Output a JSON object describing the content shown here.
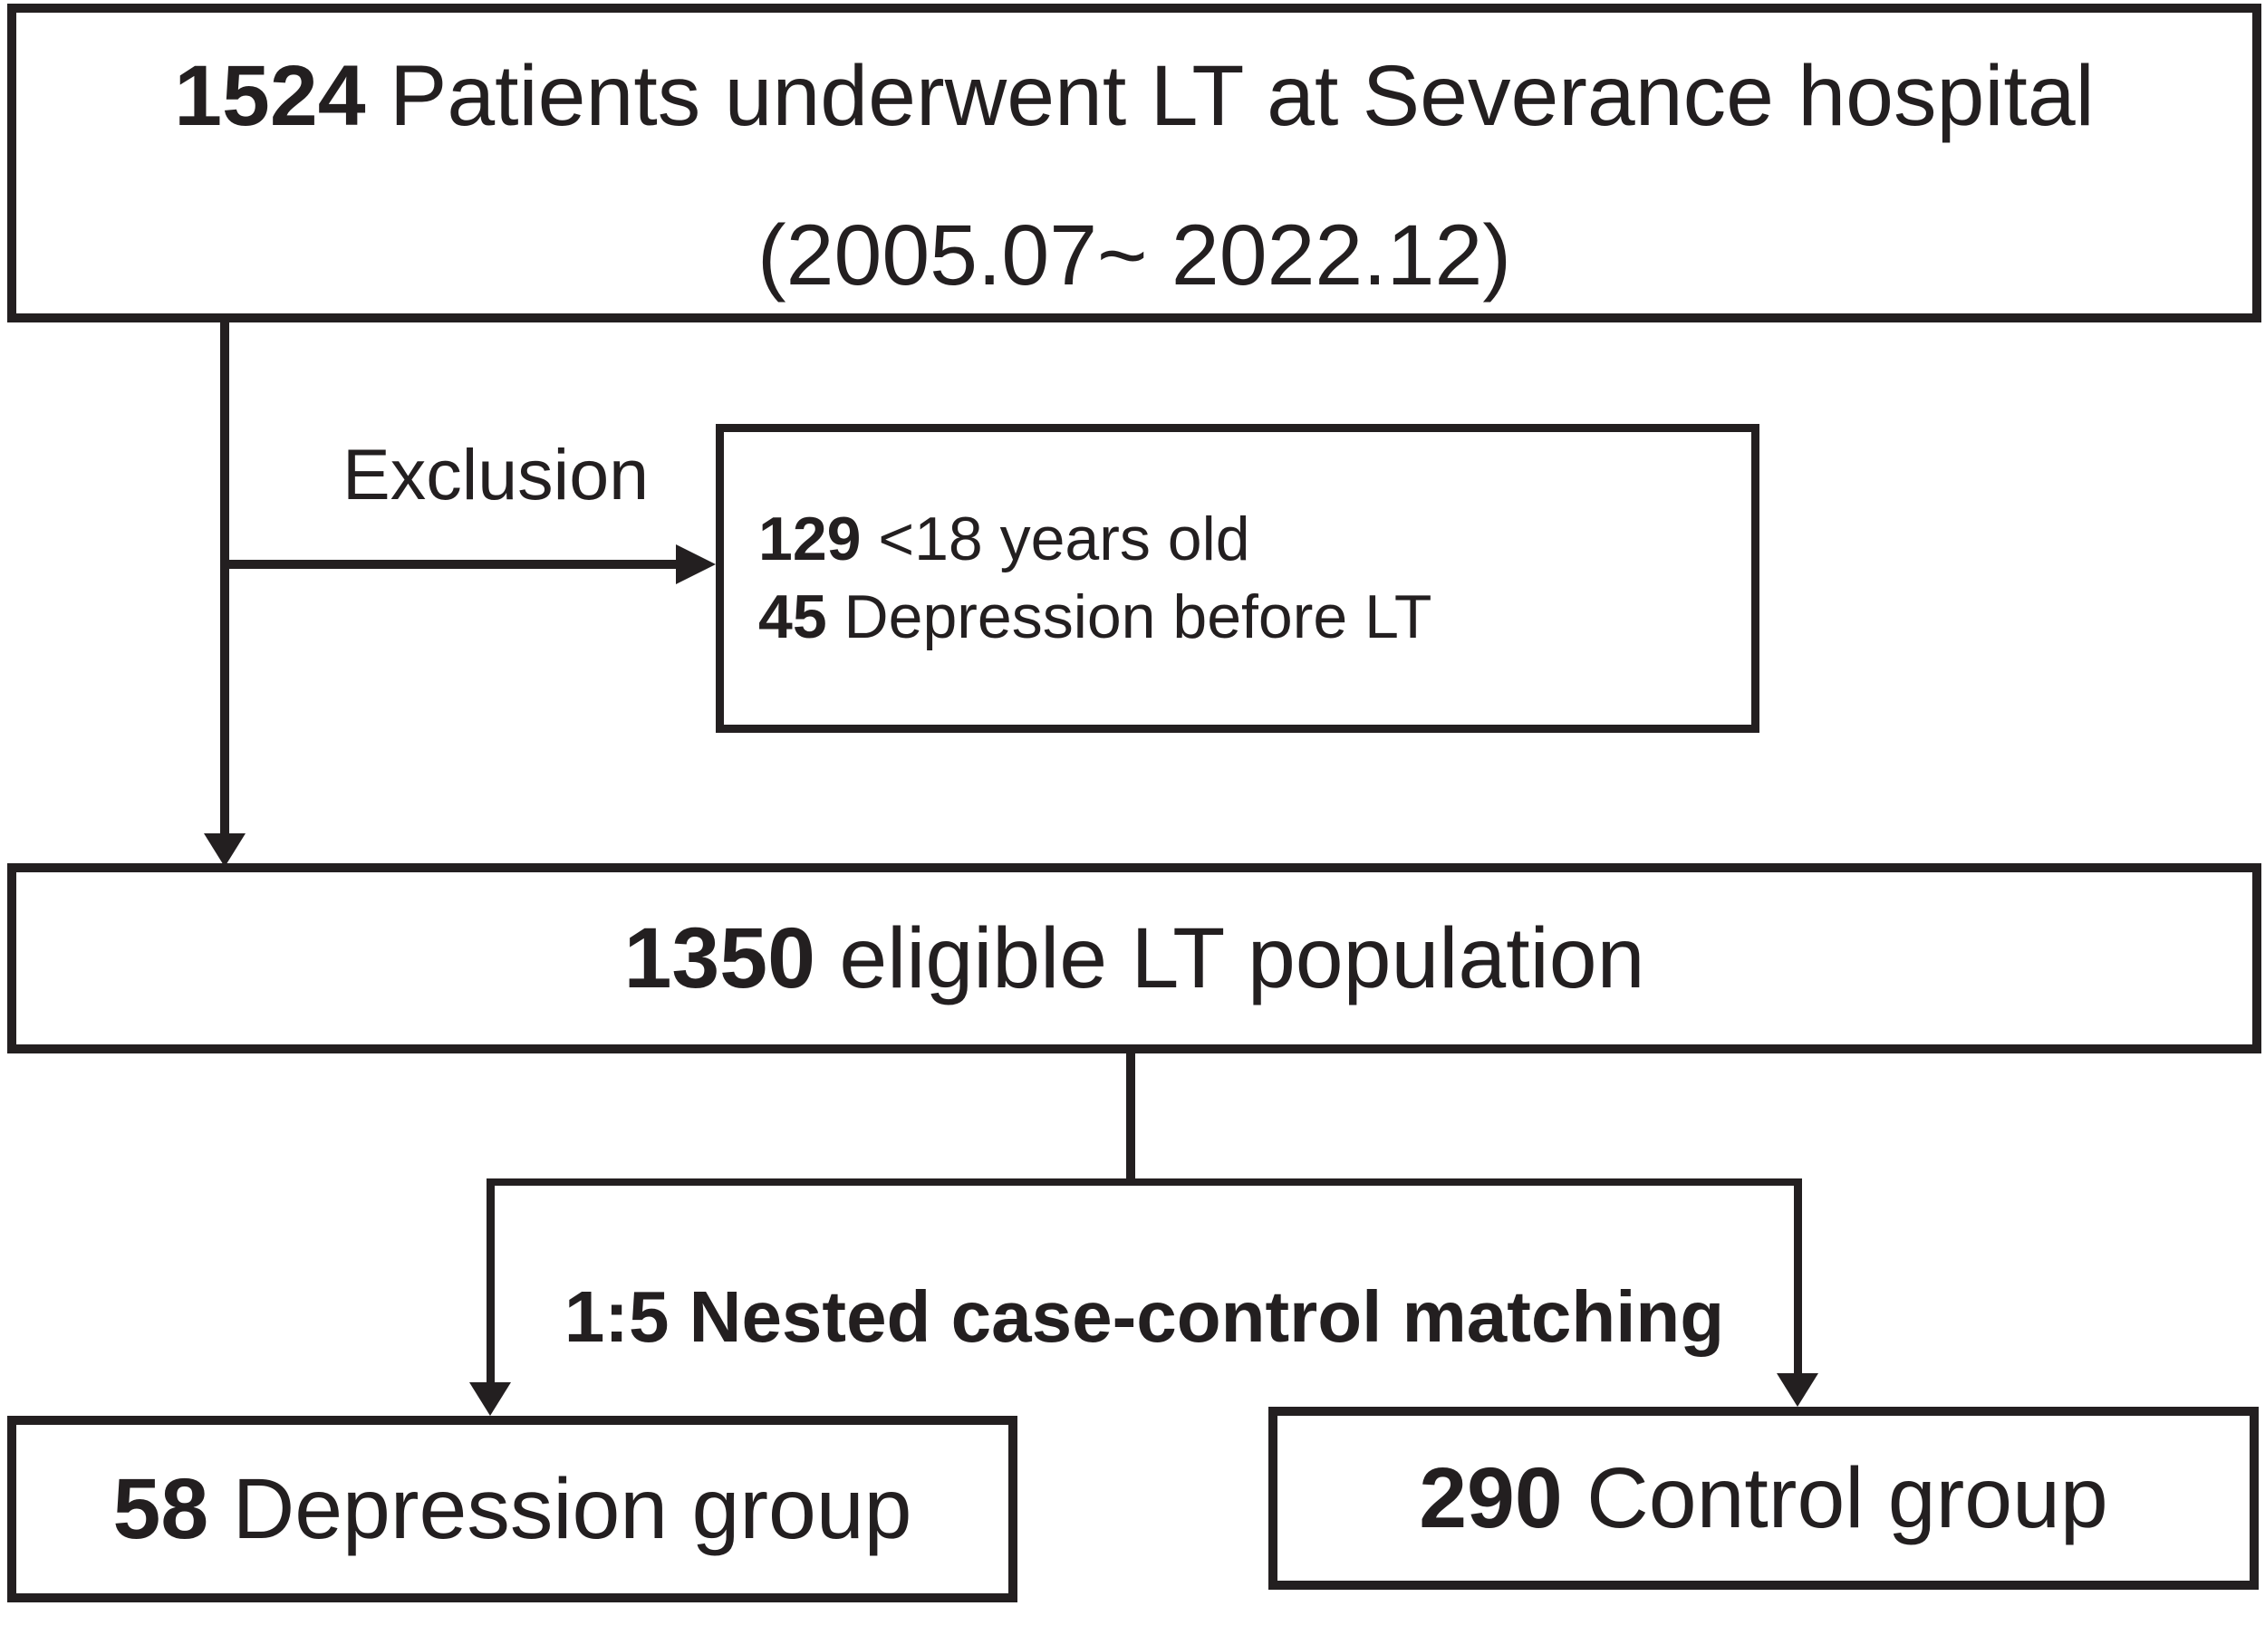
{
  "flow": {
    "colors": {
      "ink": "#231f20",
      "background": "#ffffff"
    },
    "total": {
      "count": "1524",
      "label": "Patients underwent LT at Severance hospital",
      "period": "(2005.07~ 2022.12)"
    },
    "exclusion": {
      "title": "Exclusion",
      "items": [
        {
          "count": "129",
          "label": "<18 years old"
        },
        {
          "count": "45",
          "label": "Depression before LT"
        }
      ]
    },
    "eligible": {
      "count": "1350",
      "label": "eligible LT population"
    },
    "matching_label": "1:5 Nested case-control matching",
    "depression": {
      "count": "58",
      "label": "Depression group"
    },
    "control": {
      "count": "290",
      "label": "Control group"
    }
  }
}
